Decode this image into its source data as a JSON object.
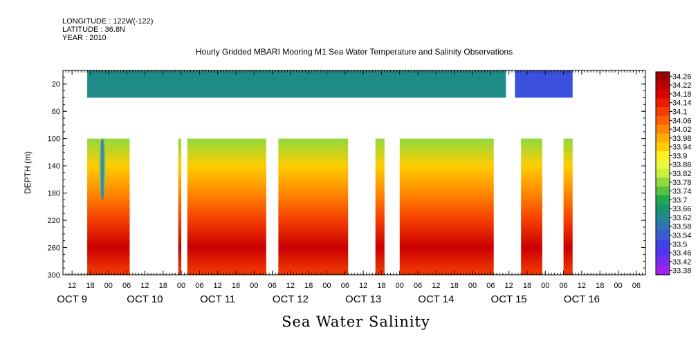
{
  "header": {
    "longitude": "LONGITUDE : 122W(-122)",
    "latitude": "LATITUDE : 36.8N",
    "year": "YEAR : 2010"
  },
  "title": "Hourly Gridded MBARI Mooring M1 Sea Water Temperature and Salinity Observations",
  "footer": "Sea Water Salinity",
  "chart_data": {
    "type": "heatmap",
    "title": "Hourly Gridded MBARI Mooring M1 Sea Water Temperature and Salinity Observations",
    "xlabel": "",
    "ylabel": "DEPTH (m)",
    "caption": "Sea Water Salinity",
    "x_start_label": "OCT 9 09:00",
    "xlim_hours_from_oct9_00": [
      9,
      201
    ],
    "ylim_depth_m": [
      300,
      0
    ],
    "y_ticks": [
      "20",
      "60",
      "100",
      "140",
      "180",
      "220",
      "260",
      "300"
    ],
    "x_hour_ticks": [
      "12",
      "18",
      "00",
      "06",
      "12",
      "18",
      "00",
      "06",
      "12",
      "18",
      "00",
      "06",
      "12",
      "18",
      "00",
      "06",
      "12",
      "18",
      "00",
      "06",
      "12",
      "18",
      "00",
      "06",
      "12",
      "18",
      "00",
      "06",
      "12",
      "18",
      "00",
      "06"
    ],
    "x_day_labels": [
      "OCT  9",
      "OCT 10",
      "OCT 11",
      "OCT 12",
      "OCT 13",
      "OCT 14",
      "OCT 15",
      "OCT 16"
    ],
    "colorbar_levels": [
      "34.26",
      "34.22",
      "34.18",
      "34.14",
      "34.1",
      "34.06",
      "34.02",
      "33.98",
      "33.94",
      "33.9",
      "33.86",
      "33.82",
      "33.78",
      "33.74",
      "33.7",
      "33.66",
      "33.62",
      "33.58",
      "33.54",
      "33.5",
      "33.46",
      "33.42",
      "33.38"
    ],
    "colors": {
      "high": "#a00000",
      "mid": "#ffff40",
      "low": "#a020f0"
    },
    "depth_rows_m": [
      20,
      100,
      140,
      180,
      220,
      260,
      300
    ],
    "salinity_profile": [
      33.62,
      33.78,
      33.94,
      34.02,
      34.1,
      34.2,
      34.1
    ],
    "surface_segments": [
      {
        "start": "OCT  9 17:00",
        "end": "OCT 15 11:00",
        "salinity": 33.63
      },
      {
        "start": "OCT 15 14:00",
        "end": "OCT 16 09:00",
        "salinity": 33.52
      }
    ],
    "data_segments": [
      {
        "start": "OCT  9 17:00",
        "end": "OCT 10 07:00"
      },
      {
        "start": "OCT 10 23:00",
        "end": "OCT 11 00:00"
      },
      {
        "start": "OCT 11 02:00",
        "end": "OCT 12 04:00"
      },
      {
        "start": "OCT 12 08:00",
        "end": "OCT 13 07:00"
      },
      {
        "start": "OCT 13 16:00",
        "end": "OCT 13 19:00"
      },
      {
        "start": "OCT 14 00:00",
        "end": "OCT 15 07:00"
      },
      {
        "start": "OCT 15 16:00",
        "end": "OCT 15 23:00"
      },
      {
        "start": "OCT 16 06:00",
        "end": "OCT 16 09:00"
      }
    ],
    "low_salinity_tongue": {
      "time": "OCT  9 22:00",
      "depth_top": 100,
      "depth_bottom": 190,
      "salinity": 33.58
    }
  }
}
